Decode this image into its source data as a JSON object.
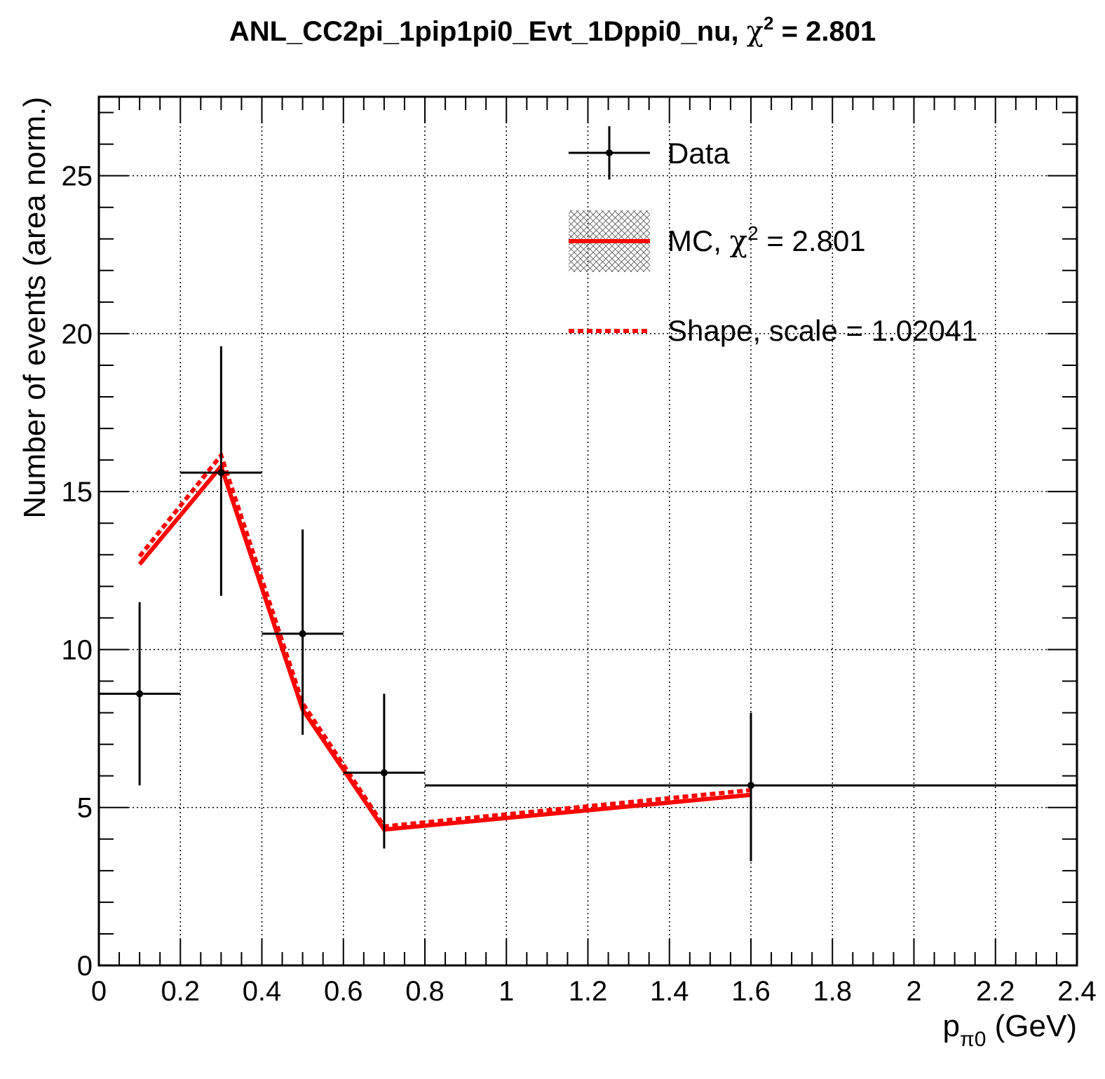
{
  "chart_data": {
    "type": "line",
    "title": "ANL_CC2pi_1pip1pi0_Evt_1Dppi0_nu, χ² = 2.801",
    "title_text": "ANL_CC2pi_1pip1pi0_Evt_1Dppi0_nu, ",
    "title_chi": "χ",
    "title_sup": "2",
    "title_value": " = 2.801",
    "xlabel": "p",
    "xlabel_sub": "π0",
    "xlabel_unit": " (GeV)",
    "ylabel": "Number of events (area norm.)",
    "xlim": [
      0,
      2.4
    ],
    "ylim": [
      0,
      27.5
    ],
    "x_ticks": [
      "0",
      "0.2",
      "0.4",
      "0.6",
      "0.8",
      "1",
      "1.2",
      "1.4",
      "1.6",
      "1.8",
      "2",
      "2.2",
      "2.4"
    ],
    "x_tick_values": [
      0,
      0.2,
      0.4,
      0.6,
      0.8,
      1.0,
      1.2,
      1.4,
      1.6,
      1.8,
      2.0,
      2.2,
      2.4
    ],
    "y_ticks": [
      "0",
      "5",
      "10",
      "15",
      "20",
      "25"
    ],
    "y_tick_values": [
      0,
      5,
      10,
      15,
      20,
      25
    ],
    "grid": true,
    "legend_position": "top-right",
    "series": [
      {
        "name": "Data",
        "kind": "points-with-errors",
        "color": "#000000",
        "points": [
          {
            "x": 0.1,
            "xlo": 0.0,
            "xhi": 0.2,
            "y": 8.6,
            "ylo": 5.7,
            "yhi": 11.5
          },
          {
            "x": 0.3,
            "xlo": 0.2,
            "xhi": 0.4,
            "y": 15.6,
            "ylo": 11.7,
            "yhi": 19.6
          },
          {
            "x": 0.5,
            "xlo": 0.4,
            "xhi": 0.6,
            "y": 10.5,
            "ylo": 7.3,
            "yhi": 13.8
          },
          {
            "x": 0.7,
            "xlo": 0.6,
            "xhi": 0.8,
            "y": 6.1,
            "ylo": 3.7,
            "yhi": 8.6
          },
          {
            "x": 1.6,
            "xlo": 0.8,
            "xhi": 2.4,
            "y": 5.7,
            "ylo": 3.3,
            "yhi": 8.0
          }
        ]
      },
      {
        "name": "MC, χ² = 2.801",
        "name_text": "MC, ",
        "name_chi": "χ",
        "name_sup": "2",
        "name_value": " = 2.801",
        "kind": "line",
        "color": "#ff0000",
        "x": [
          0.1,
          0.3,
          0.5,
          0.7,
          1.6
        ],
        "y": [
          12.7,
          15.8,
          8.1,
          4.3,
          5.4
        ]
      },
      {
        "name": "Shape, scale = 1.02041",
        "kind": "dashed-line",
        "color": "#ff0000",
        "x": [
          0.1,
          0.3,
          0.5,
          0.7,
          1.6
        ],
        "y": [
          12.95,
          16.15,
          8.3,
          4.4,
          5.55
        ]
      }
    ]
  }
}
